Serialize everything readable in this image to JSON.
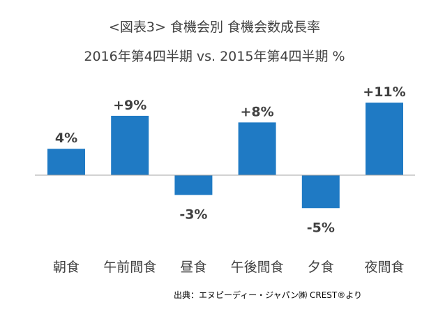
{
  "title": "<図表3> 食機会別 食機会数成長率",
  "subtitle": "2016年第4四半期 vs. 2015年第4四半期 %",
  "source": "出典：エヌピーディー・ジャパン㈱ CREST®より",
  "bar_color": "#1f7ac4",
  "chart_data": {
    "type": "bar",
    "title": "<図表3> 食機会別 食機会数成長率",
    "subtitle": "2016年第4四半期 vs. 2015年第4四半期 %",
    "categories": [
      "朝食",
      "午前間食",
      "昼食",
      "午後間食",
      "夕食",
      "夜間食"
    ],
    "values": [
      4,
      9,
      -3,
      8,
      -5,
      11
    ],
    "data_labels": [
      "4%",
      "+9%",
      "-3%",
      "+8%",
      "-5%",
      "+11%"
    ],
    "ylim": [
      -5,
      11
    ],
    "grid": false,
    "legend": "none"
  }
}
